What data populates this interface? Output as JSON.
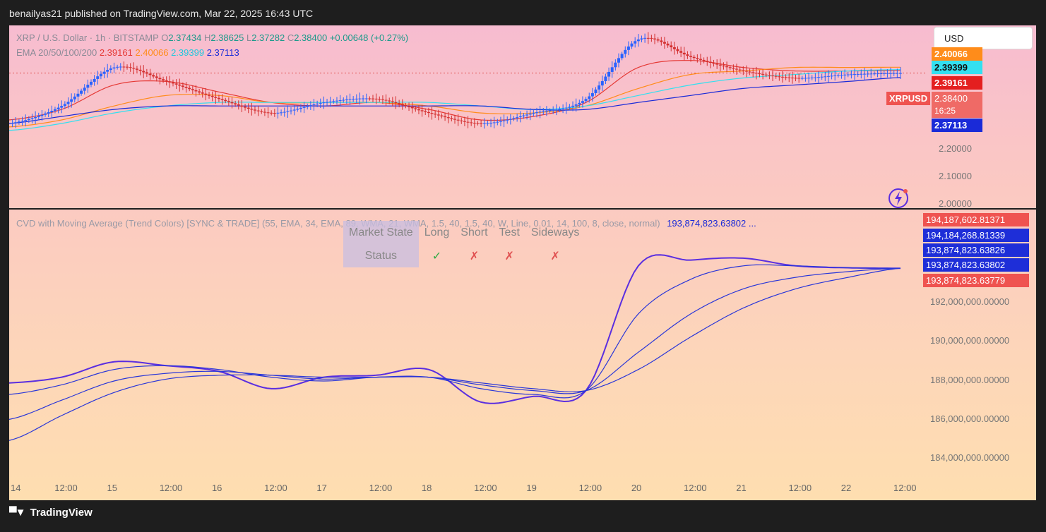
{
  "header": {
    "publish_text": "benailyas21 published on TradingView.com, Mar 22, 2025 16:43 UTC"
  },
  "symbol_legend": {
    "title": "XRP / U.S. Dollar · 1h · BITSTAMP",
    "o_label": "O",
    "o_value": "2.37434",
    "h_label": "H",
    "h_value": "2.38625",
    "l_label": "L",
    "l_value": "2.37282",
    "c_label": "C",
    "c_value": "2.38400",
    "change": "+0.00648 (+0.27%)"
  },
  "ema_legend": {
    "label": "EMA 20/50/100/200",
    "v20": "2.39161",
    "v50": "2.40066",
    "v100": "2.39399",
    "v200": "2.37113"
  },
  "currency_button": {
    "label": "USD"
  },
  "price_tags": {
    "ema50": "2.40066",
    "ema100": "2.39399",
    "ema20": "2.39161",
    "symbol": "XRPUSD",
    "last": "2.38400",
    "countdown": "16:25",
    "ema200": "2.37113"
  },
  "price_axis": [
    "2.20000",
    "2.10000",
    "2.00000"
  ],
  "cvd_legend": {
    "text": "CVD with Moving Average (Trend Colors) [SYNC & TRADE] (55, EMA, 34, EMA, 89, WMA, 21, WMA, 1.5, 40, 1.5, 40, W, Line, 0.01, 14, 100, 8, close, normal)",
    "value": "193,874,823.63802 ..."
  },
  "market_state_table": {
    "headers": [
      "Market State",
      "Long",
      "Short",
      "Test",
      "Sideways"
    ],
    "row_label": "Status",
    "values": [
      "✓",
      "✗",
      "✗",
      "✗"
    ],
    "colors": [
      "#2eaa44",
      "#e05050",
      "#e05050",
      "#e05050"
    ]
  },
  "cvd_tags": [
    {
      "value": "194,187,602.81371",
      "color": "#ef5350"
    },
    {
      "value": "194,184,268.81339",
      "color": "#1e2ed8"
    },
    {
      "value": "193,874,823.63826",
      "color": "#1e2ed8"
    },
    {
      "value": "193,874,823.63802",
      "color": "#1e2ed8"
    },
    {
      "value": "193,874,823.63779",
      "color": "#ef5350"
    }
  ],
  "cvd_axis": [
    "192,000,000.00000",
    "190,000,000.00000",
    "188,000,000.00000",
    "186,000,000.00000",
    "184,000,000.00000"
  ],
  "time_axis": [
    "14",
    "12:00",
    "15",
    "12:00",
    "16",
    "12:00",
    "17",
    "12:00",
    "18",
    "12:00",
    "19",
    "12:00",
    "20",
    "12:00",
    "21",
    "12:00",
    "22",
    "12:00"
  ],
  "footer": {
    "brand": "TradingView"
  },
  "colors": {
    "ema20": "#e53935",
    "ema50": "#ff8c1a",
    "ema100": "#33e0f0",
    "ema200": "#1a2ad8",
    "bull": "#2962ff",
    "bear": "#d32f2f",
    "cvd_line": "#5a2ee0"
  },
  "chart_data": [
    {
      "type": "line",
      "title": "XRP / U.S. Dollar · 1h · BITSTAMP",
      "x": [
        "14",
        "12:00",
        "15",
        "12:00",
        "16",
        "12:00",
        "17",
        "12:00",
        "18",
        "12:00",
        "19",
        "12:00",
        "20",
        "12:00",
        "21",
        "12:00",
        "22",
        "12:00"
      ],
      "series": [
        {
          "name": "XRP / U.S. Dollar",
          "values": [
            2.24,
            2.29,
            2.4,
            2.36,
            2.31,
            2.27,
            2.3,
            2.31,
            2.27,
            2.24,
            2.27,
            2.31,
            2.48,
            2.43,
            2.39,
            2.37,
            2.38,
            2.384
          ]
        },
        {
          "name": "EMA 20",
          "values": [
            2.25,
            2.28,
            2.35,
            2.36,
            2.33,
            2.3,
            2.29,
            2.3,
            2.28,
            2.25,
            2.26,
            2.3,
            2.4,
            2.42,
            2.4,
            2.39,
            2.39,
            2.3916
          ]
        },
        {
          "name": "EMA 50",
          "values": [
            2.23,
            2.25,
            2.29,
            2.32,
            2.32,
            2.3,
            2.3,
            2.3,
            2.29,
            2.27,
            2.27,
            2.29,
            2.34,
            2.38,
            2.39,
            2.4,
            2.4,
            2.4007
          ]
        },
        {
          "name": "EMA 100",
          "values": [
            2.22,
            2.24,
            2.27,
            2.29,
            2.3,
            2.3,
            2.3,
            2.3,
            2.3,
            2.29,
            2.28,
            2.29,
            2.32,
            2.35,
            2.37,
            2.38,
            2.39,
            2.394
          ]
        },
        {
          "name": "EMA 200",
          "values": [
            2.24,
            2.26,
            2.28,
            2.29,
            2.29,
            2.29,
            2.29,
            2.29,
            2.29,
            2.29,
            2.28,
            2.28,
            2.3,
            2.32,
            2.34,
            2.35,
            2.36,
            2.3711
          ]
        }
      ],
      "ylim": [
        2.0,
        2.5
      ]
    },
    {
      "type": "line",
      "title": "CVD with Moving Average (Trend Colors) [SYNC & TRADE]",
      "x": [
        "14",
        "12:00",
        "15",
        "12:00",
        "16",
        "12:00",
        "17",
        "12:00",
        "18",
        "12:00",
        "19",
        "12:00",
        "20",
        "12:00",
        "21",
        "12:00",
        "22",
        "12:00"
      ],
      "series": [
        {
          "name": "CVD",
          "values": [
            187900000,
            188200000,
            189000000,
            188800000,
            188500000,
            187600000,
            188200000,
            188300000,
            188600000,
            186900000,
            187200000,
            187500000,
            194000000,
            194300000,
            194400000,
            194000000,
            193900000,
            193874823.6
          ]
        },
        {
          "name": "MA 1",
          "values": [
            187300000,
            187800000,
            188600000,
            188800000,
            188600000,
            188200000,
            188000000,
            188200000,
            188200000,
            187600000,
            187300000,
            187500000,
            191500000,
            193300000,
            194000000,
            194000000,
            193900000,
            193874823.6
          ]
        },
        {
          "name": "MA 2",
          "values": [
            186000000,
            187000000,
            188000000,
            188400000,
            188500000,
            188300000,
            188100000,
            188200000,
            188200000,
            187800000,
            187500000,
            187500000,
            189500000,
            191500000,
            192800000,
            193400000,
            193700000,
            193874823.6
          ]
        },
        {
          "name": "MA 3",
          "values": [
            184900000,
            186200000,
            187400000,
            188100000,
            188300000,
            188300000,
            188200000,
            188200000,
            188200000,
            187900000,
            187600000,
            187500000,
            188600000,
            190300000,
            191800000,
            192800000,
            193400000,
            193874823.6
          ]
        }
      ],
      "ylim": [
        183000000,
        195500000
      ]
    }
  ]
}
